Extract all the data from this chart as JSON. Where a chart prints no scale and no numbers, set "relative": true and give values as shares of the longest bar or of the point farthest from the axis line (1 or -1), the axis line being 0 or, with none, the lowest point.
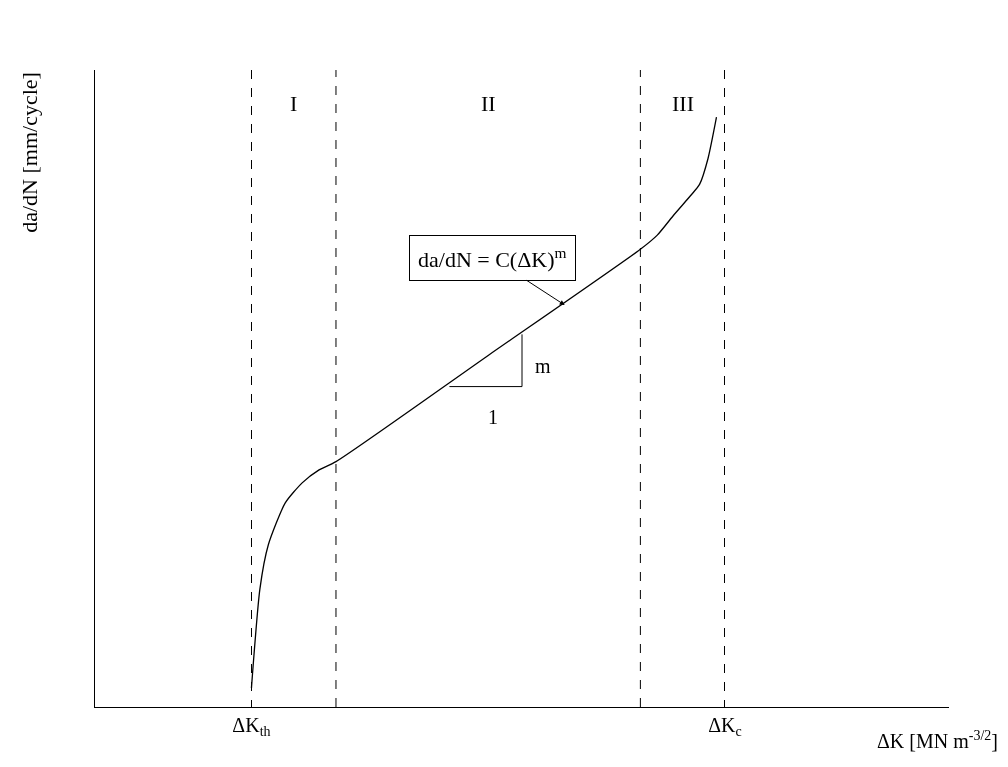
{
  "chart_data": {
    "type": "line",
    "relative": true,
    "xlabel": "ΔK [MN m$^{-3/2}$]",
    "ylabel": "da/dN [mm/cycle]",
    "categories": [
      null,
      null,
      null,
      null,
      null,
      null,
      null,
      null,
      null,
      null,
      null,
      null,
      null,
      null,
      null,
      null,
      null,
      null,
      "ΔK$_{th}$",
      null,
      null,
      null,
      null,
      null,
      null,
      null,
      null,
      null,
      null,
      null,
      null,
      null,
      null,
      null,
      null,
      null,
      null,
      null,
      null,
      null,
      null,
      null,
      null,
      null,
      null,
      null,
      null,
      null,
      null,
      null,
      null,
      null,
      null,
      null,
      null,
      null,
      null,
      null,
      null,
      null,
      null,
      null,
      null,
      null,
      null,
      null,
      null,
      null,
      null,
      null,
      null,
      null,
      null,
      null,
      "ΔK$_{c}$",
      null,
      null,
      null,
      null,
      null,
      null,
      null,
      null,
      null,
      null,
      null,
      null,
      null,
      null,
      null,
      null,
      null,
      null,
      null,
      null,
      null,
      null,
      null,
      null,
      null,
      null
    ],
    "series": [
      {
        "color": "#000000",
        "values": [
          null,
          null,
          null,
          null,
          null,
          null,
          null,
          null,
          null,
          null,
          null,
          null,
          null,
          null,
          null,
          null,
          null,
          null,
          0.032,
          0.2,
          0.275,
          null,
          0.346,
          null,
          0.38,
          null,
          0.402,
          null,
          0.416,
          null,
          null,
          null,
          null,
          null,
          null,
          null,
          null,
          null,
          null,
          null,
          null,
          null,
          null,
          null,
          null,
          null,
          0.596,
          null,
          null,
          null,
          null,
          null,
          null,
          null,
          null,
          null,
          null,
          null,
          null,
          null,
          null,
          null,
          null,
          null,
          0.776,
          null,
          0.8,
          null,
          0.835,
          null,
          0.868,
          0.886,
          0.93,
          1,
          null,
          null,
          null,
          null,
          null,
          null,
          null,
          null,
          null,
          null,
          null,
          null,
          null,
          null,
          null,
          null,
          null,
          null,
          null,
          null,
          null,
          null,
          null,
          null,
          null,
          null,
          null
        ]
      }
    ],
    "annotations": [
      "I",
      "II",
      "III",
      "da/dN = C(ΔK)$^{m}$",
      "m",
      "1"
    ],
    "grid": "x",
    "marker": "none",
    "line_style": "solid"
  }
}
